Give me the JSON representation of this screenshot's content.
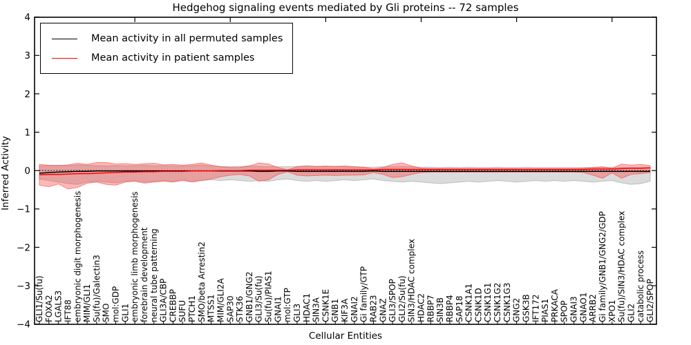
{
  "title": "Hedgehog signaling events mediated by Gli proteins -- 72 samples",
  "legend": {
    "items": [
      {
        "label": "Mean activity in all permuted samples",
        "color": "#000000"
      },
      {
        "label": "Mean activity in patient samples",
        "color": "#ff0000"
      }
    ]
  },
  "axes": {
    "xlabel": "Cellular Entities",
    "ylabel": "Inferred Activity",
    "ytick_values": [
      4,
      3,
      2,
      1,
      0,
      -1,
      -2,
      -3,
      -4
    ],
    "ylim": [
      -4,
      4
    ]
  },
  "chart_data": {
    "type": "line",
    "title": "Hedgehog signaling events mediated by Gli proteins -- 72 samples",
    "xlabel": "Cellular Entities",
    "ylabel": "Inferred Activity",
    "ylim": [
      -4,
      4
    ],
    "grid": false,
    "legend_position": "upper left",
    "zero_line": {
      "style": "dotted",
      "color": "#000000",
      "value": 0
    },
    "top_tick_interval": 10,
    "categories": [
      "GLI1/Su(fu)",
      "FOXA2",
      "LGALS3",
      "IFT88",
      "embryonic digit morphogenesis",
      "MIM/GLI1",
      "Su(fu)/Galectin3",
      "SMO",
      "mol:GDP",
      "GLI1",
      "embryonic limb morphogenesis",
      "forebrain development",
      "neural tube patterning",
      "GLI3A/CBP",
      "CREBBP",
      "SUFU",
      "PTCH1",
      "SMO/beta Arrestin2",
      "MTSS1",
      "MIM/GLI2A",
      "SAP30",
      "STK36",
      "GNB1/GNG2",
      "GLI3/Su(fu)",
      "Su(fu)/PIAS1",
      "GNAI1",
      "mol:GTP",
      "GLI3",
      "HDAC1",
      "SIN3A",
      "CSNK1E",
      "GNB1",
      "KIF3A",
      "GNAI2",
      "Gi family/GTP",
      "RAB23",
      "GNAZ",
      "GLI3/SPOP",
      "GLI2/Su(fu)",
      "SIN3/HDAC complex",
      "HDAC2",
      "RBBP7",
      "SIN3B",
      "RBBP4",
      "SAP18",
      "CSNK1A1",
      "CSNK1D",
      "CSNK1G1",
      "CSNK1G2",
      "CSNK1G3",
      "GNG2",
      "GSK3B",
      "IFT172",
      "PIAS1",
      "PRKACA",
      "SPOP",
      "GNAI3",
      "GNAO1",
      "ARRB2",
      "Gi family/GNB1/GNG2/GDP",
      "XPO1",
      "Su(fu)/SIN3/HDAC complex",
      "GLI2",
      "catabolic process",
      "GLI2/SPOP"
    ],
    "series": [
      {
        "name": "Mean activity in all permuted samples",
        "color": "#000000",
        "style": "solid",
        "values": [
          -0.07,
          -0.05,
          -0.04,
          -0.03,
          -0.02,
          -0.02,
          -0.01,
          -0.01,
          -0.01,
          -0.01,
          -0.01,
          -0.01,
          -0.01,
          -0.01,
          -0.01,
          -0.01,
          -0.01,
          -0.01,
          -0.01,
          -0.01,
          -0.01,
          -0.01,
          -0.01,
          -0.02,
          -0.02,
          -0.01,
          -0.01,
          -0.02,
          -0.02,
          -0.02,
          -0.02,
          -0.02,
          -0.02,
          -0.02,
          -0.02,
          -0.01,
          -0.02,
          -0.02,
          -0.02,
          -0.02,
          -0.02,
          -0.02,
          -0.02,
          -0.02,
          -0.02,
          -0.02,
          -0.02,
          -0.02,
          -0.02,
          -0.02,
          -0.02,
          -0.02,
          -0.02,
          -0.02,
          -0.02,
          -0.02,
          -0.02,
          -0.02,
          -0.02,
          -0.02,
          -0.02,
          -0.02,
          -0.02,
          -0.02,
          -0.02
        ]
      },
      {
        "name": "Mean activity in patient samples",
        "color": "#ff0000",
        "style": "solid",
        "values": [
          -0.11,
          -0.1,
          -0.1,
          -0.09,
          -0.08,
          -0.08,
          -0.07,
          -0.06,
          -0.05,
          -0.04,
          -0.04,
          -0.03,
          -0.03,
          -0.02,
          -0.02,
          -0.02,
          -0.01,
          -0.01,
          -0.01,
          0,
          0,
          0,
          0.01,
          0.01,
          0.01,
          0.01,
          0.01,
          0.02,
          0.02,
          0.02,
          0.02,
          0.02,
          0.02,
          0.02,
          0.02,
          0.02,
          0.03,
          0.03,
          0.03,
          0.03,
          0.03,
          0.03,
          0.03,
          0.03,
          0.03,
          0.03,
          0.03,
          0.03,
          0.03,
          0.03,
          0.03,
          0.03,
          0.03,
          0.03,
          0.03,
          0.03,
          0.03,
          0.03,
          0.04,
          0.04,
          0.04,
          0.05,
          0.06,
          0.06,
          0.07
        ]
      }
    ],
    "bands": [
      {
        "name": "permuted samples range",
        "color": "#999999",
        "opacity": 0.35,
        "hi": [
          0.12,
          0.13,
          0.14,
          0.13,
          0.15,
          0.14,
          0.13,
          0.12,
          0.13,
          0.12,
          0.13,
          0.14,
          0.12,
          0.13,
          0.12,
          0.12,
          0.13,
          0.15,
          0.12,
          0.11,
          0.1,
          0.11,
          0.12,
          0.11,
          0.1,
          0.1,
          0.1,
          0.11,
          0.12,
          0.11,
          0.1,
          0.11,
          0.1,
          0.1,
          0.09,
          0.09,
          0.1,
          0.1,
          0.11,
          0.1,
          0.09,
          0.09,
          0.08,
          0.09,
          0.08,
          0.09,
          0.08,
          0.08,
          0.09,
          0.08,
          0.08,
          0.09,
          0.08,
          0.08,
          0.08,
          0.08,
          0.08,
          0.08,
          0.08,
          0.08,
          0.08,
          0.08,
          0.08,
          0.08,
          0.08
        ],
        "lo": [
          -0.22,
          -0.26,
          -0.3,
          -0.34,
          -0.36,
          -0.3,
          -0.28,
          -0.3,
          -0.32,
          -0.28,
          -0.26,
          -0.3,
          -0.28,
          -0.26,
          -0.28,
          -0.24,
          -0.28,
          -0.26,
          -0.24,
          -0.26,
          -0.24,
          -0.26,
          -0.28,
          -0.26,
          -0.28,
          -0.24,
          -0.22,
          -0.26,
          -0.28,
          -0.26,
          -0.28,
          -0.26,
          -0.24,
          -0.26,
          -0.24,
          -0.22,
          -0.26,
          -0.28,
          -0.3,
          -0.28,
          -0.3,
          -0.32,
          -0.34,
          -0.32,
          -0.3,
          -0.28,
          -0.3,
          -0.28,
          -0.26,
          -0.28,
          -0.3,
          -0.28,
          -0.26,
          -0.28,
          -0.26,
          -0.28,
          -0.26,
          -0.28,
          -0.3,
          -0.28,
          -0.26,
          -0.32,
          -0.36,
          -0.34,
          -0.28
        ]
      },
      {
        "name": "patient samples range",
        "color": "#ff3333",
        "opacity": 0.35,
        "hi": [
          0.16,
          0.14,
          0.13,
          0.15,
          0.19,
          0.16,
          0.21,
          0.21,
          0.17,
          0.18,
          0.16,
          0.18,
          0.19,
          0.15,
          0.16,
          0.14,
          0.16,
          0.2,
          0.14,
          0.1,
          0.08,
          0.08,
          0.12,
          0.2,
          0.17,
          0.08,
          0.02,
          0.1,
          0.12,
          0.11,
          0.12,
          0.11,
          0.12,
          0.1,
          0.09,
          0.04,
          0.08,
          0.16,
          0.2,
          0.12,
          0.06,
          0.05,
          0.05,
          0.05,
          0.05,
          0.05,
          0.05,
          0.05,
          0.05,
          0.05,
          0.05,
          0.05,
          0.05,
          0.05,
          0.05,
          0.05,
          0.05,
          0.06,
          0.08,
          0.1,
          0.06,
          0.17,
          0.14,
          0.16,
          0.13
        ],
        "lo": [
          -0.38,
          -0.42,
          -0.35,
          -0.48,
          -0.44,
          -0.33,
          -0.3,
          -0.36,
          -0.38,
          -0.3,
          -0.28,
          -0.33,
          -0.3,
          -0.28,
          -0.3,
          -0.26,
          -0.3,
          -0.26,
          -0.22,
          -0.16,
          -0.12,
          -0.1,
          -0.14,
          -0.28,
          -0.24,
          -0.1,
          -0.03,
          -0.12,
          -0.14,
          -0.13,
          -0.12,
          -0.13,
          -0.12,
          -0.12,
          -0.11,
          -0.05,
          -0.1,
          -0.18,
          -0.16,
          -0.1,
          -0.05,
          -0.04,
          -0.04,
          -0.04,
          -0.04,
          -0.04,
          -0.04,
          -0.04,
          -0.04,
          -0.04,
          -0.04,
          -0.04,
          -0.04,
          -0.04,
          -0.04,
          -0.04,
          -0.04,
          -0.05,
          -0.12,
          -0.2,
          -0.06,
          -0.2,
          -0.1,
          -0.08,
          -0.05
        ]
      }
    ]
  }
}
